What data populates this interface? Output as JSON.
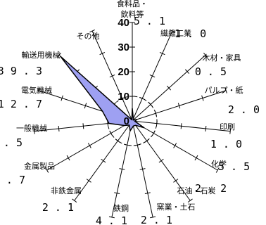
{
  "chart_data": {
    "type": "radar",
    "categories": [
      "食料品・飲料等",
      "繊維工業",
      "木材・家具",
      "パルプ・紙",
      "印刷",
      "化学",
      "石油・石炭",
      "窯業・土石",
      "鉄鋼",
      "非鉄金属",
      "金属製品",
      "一般機械",
      "電気機械",
      "輸送用機械",
      "その他"
    ],
    "name_lines": [
      [
        "食料品・",
        "飲料等"
      ],
      [
        "繊維工業"
      ],
      [
        "木材・家具"
      ],
      [
        "パルプ・紙"
      ],
      [
        "印刷"
      ],
      [
        "化学"
      ],
      [
        "石油・石炭"
      ],
      [
        "窯業・土石"
      ],
      [
        "鉄鋼"
      ],
      [
        "非鉄金属"
      ],
      [
        "金属製品"
      ],
      [
        "一般機械"
      ],
      [
        "電気機械"
      ],
      [
        "輸送用機械"
      ],
      [
        "その他"
      ]
    ],
    "value_labels": [
      "5.1",
      "1.0",
      "0.5",
      "2.0",
      "1.0",
      "5.5",
      "2.2",
      "2.1",
      "4.1",
      "2.1",
      "3.7",
      "9.5",
      "12.7",
      "39.3",
      ""
    ],
    "values": [
      5.1,
      1.0,
      0.5,
      2.0,
      1.0,
      5.5,
      2.2,
      2.1,
      4.1,
      2.1,
      3.7,
      9.5,
      12.7,
      39.3,
      0.5
    ],
    "radial_ticks": [
      "0",
      "10",
      "20",
      "30",
      "40"
    ],
    "rlim": [
      0,
      40
    ],
    "reference_circle": 10,
    "fill_color": "#9ea0f2",
    "line_color": "#000000"
  }
}
